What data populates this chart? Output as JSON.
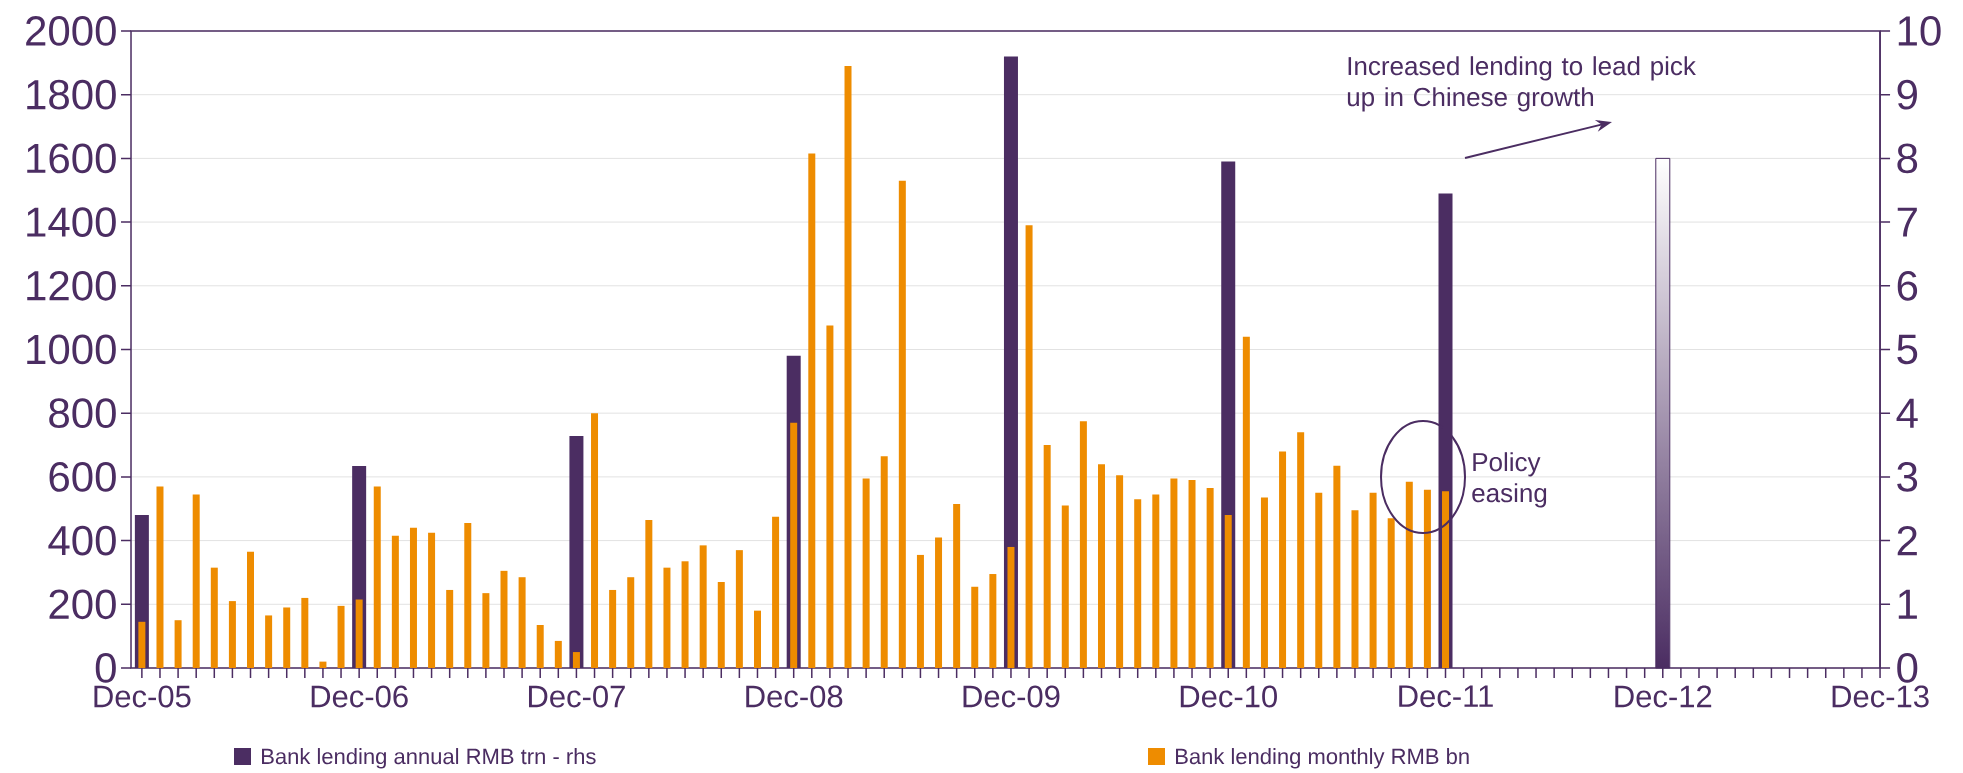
{
  "chart_data": {
    "type": "bar",
    "categories": [
      "Dec-05",
      null,
      null,
      null,
      null,
      null,
      null,
      null,
      null,
      null,
      null,
      null,
      "Dec-06",
      null,
      null,
      null,
      null,
      null,
      null,
      null,
      null,
      null,
      null,
      null,
      "Dec-07",
      null,
      null,
      null,
      null,
      null,
      null,
      null,
      null,
      null,
      null,
      null,
      "Dec-08",
      null,
      null,
      null,
      null,
      null,
      null,
      null,
      null,
      null,
      null,
      null,
      "Dec-09",
      null,
      null,
      null,
      null,
      null,
      null,
      null,
      null,
      null,
      null,
      null,
      "Dec-10",
      null,
      null,
      null,
      null,
      null,
      null,
      null,
      null,
      null,
      null,
      null,
      "Dec-11",
      null,
      null,
      null,
      null,
      null,
      null,
      null,
      null,
      null,
      null,
      null,
      "Dec-12",
      null,
      null,
      null,
      null,
      null,
      null,
      null,
      null,
      null,
      null,
      null,
      "Dec-13"
    ],
    "series": [
      {
        "name": "Bank lending annual RMB trn - rhs",
        "axis": "y2",
        "color": "#4b2d62",
        "values": [
          2.4,
          null,
          null,
          null,
          null,
          null,
          null,
          null,
          null,
          null,
          null,
          null,
          3.17,
          null,
          null,
          null,
          null,
          null,
          null,
          null,
          null,
          null,
          null,
          null,
          3.64,
          null,
          null,
          null,
          null,
          null,
          null,
          null,
          null,
          null,
          null,
          null,
          4.9,
          null,
          null,
          null,
          null,
          null,
          null,
          null,
          null,
          null,
          null,
          null,
          9.6,
          null,
          null,
          null,
          null,
          null,
          null,
          null,
          null,
          null,
          null,
          null,
          7.95,
          null,
          null,
          null,
          null,
          null,
          null,
          null,
          null,
          null,
          null,
          null,
          7.45,
          null,
          null,
          null,
          null,
          null,
          null,
          null,
          null,
          null,
          null,
          null,
          8.0,
          null,
          null,
          null,
          null,
          null,
          null,
          null,
          null,
          null,
          null,
          null,
          null
        ],
        "colors": [
          "#4b2d62",
          null,
          null,
          null,
          null,
          null,
          null,
          null,
          null,
          null,
          null,
          null,
          "#4b2d62",
          null,
          null,
          null,
          null,
          null,
          null,
          null,
          null,
          null,
          null,
          null,
          "#4b2d62",
          null,
          null,
          null,
          null,
          null,
          null,
          null,
          null,
          null,
          null,
          null,
          "#4b2d62",
          null,
          null,
          null,
          null,
          null,
          null,
          null,
          null,
          null,
          null,
          null,
          "#4b2d62",
          null,
          null,
          null,
          null,
          null,
          null,
          null,
          null,
          null,
          null,
          null,
          "#4b2d62",
          null,
          null,
          null,
          null,
          null,
          null,
          null,
          null,
          null,
          null,
          null,
          "#4b2d62",
          null,
          null,
          null,
          null,
          null,
          null,
          null,
          null,
          null,
          null,
          null,
          "#ffffff",
          null,
          null,
          null,
          null,
          null,
          null,
          null,
          null,
          null,
          null,
          null,
          null
        ]
      },
      {
        "name": "Bank lending monthly RMB bn",
        "axis": "y",
        "color": "#ee8c00",
        "values": [
          145,
          570,
          150,
          545,
          315,
          210,
          365,
          165,
          190,
          220,
          20,
          195,
          215,
          570,
          415,
          440,
          425,
          245,
          455,
          235,
          305,
          285,
          135,
          85,
          50,
          800,
          245,
          285,
          465,
          315,
          335,
          385,
          270,
          370,
          180,
          475,
          770,
          1615,
          1075,
          1890,
          595,
          665,
          1530,
          355,
          410,
          515,
          255,
          295,
          380,
          1390,
          700,
          510,
          775,
          640,
          605,
          530,
          545,
          595,
          590,
          565,
          480,
          1040,
          535,
          680,
          740,
          550,
          635,
          495,
          550,
          470,
          585,
          560,
          555,
          null,
          null,
          null,
          null,
          null,
          null,
          null,
          null,
          null,
          null,
          null,
          null,
          null,
          null,
          null,
          null,
          null,
          null,
          null,
          null,
          null,
          null,
          null,
          null
        ]
      }
    ],
    "ylim": [
      0,
      2000
    ],
    "yticks": [
      0,
      200,
      400,
      600,
      800,
      1000,
      1200,
      1400,
      1600,
      1800,
      2000
    ],
    "y2lim": [
      0,
      10
    ],
    "y2ticks": [
      0,
      1,
      2,
      3,
      4,
      5,
      6,
      7,
      8,
      9,
      10
    ],
    "grid": "y",
    "legend": "bottom",
    "annotations": [
      "Increased lending to lead pick up in Chinese growth",
      "Policy easing"
    ]
  }
}
